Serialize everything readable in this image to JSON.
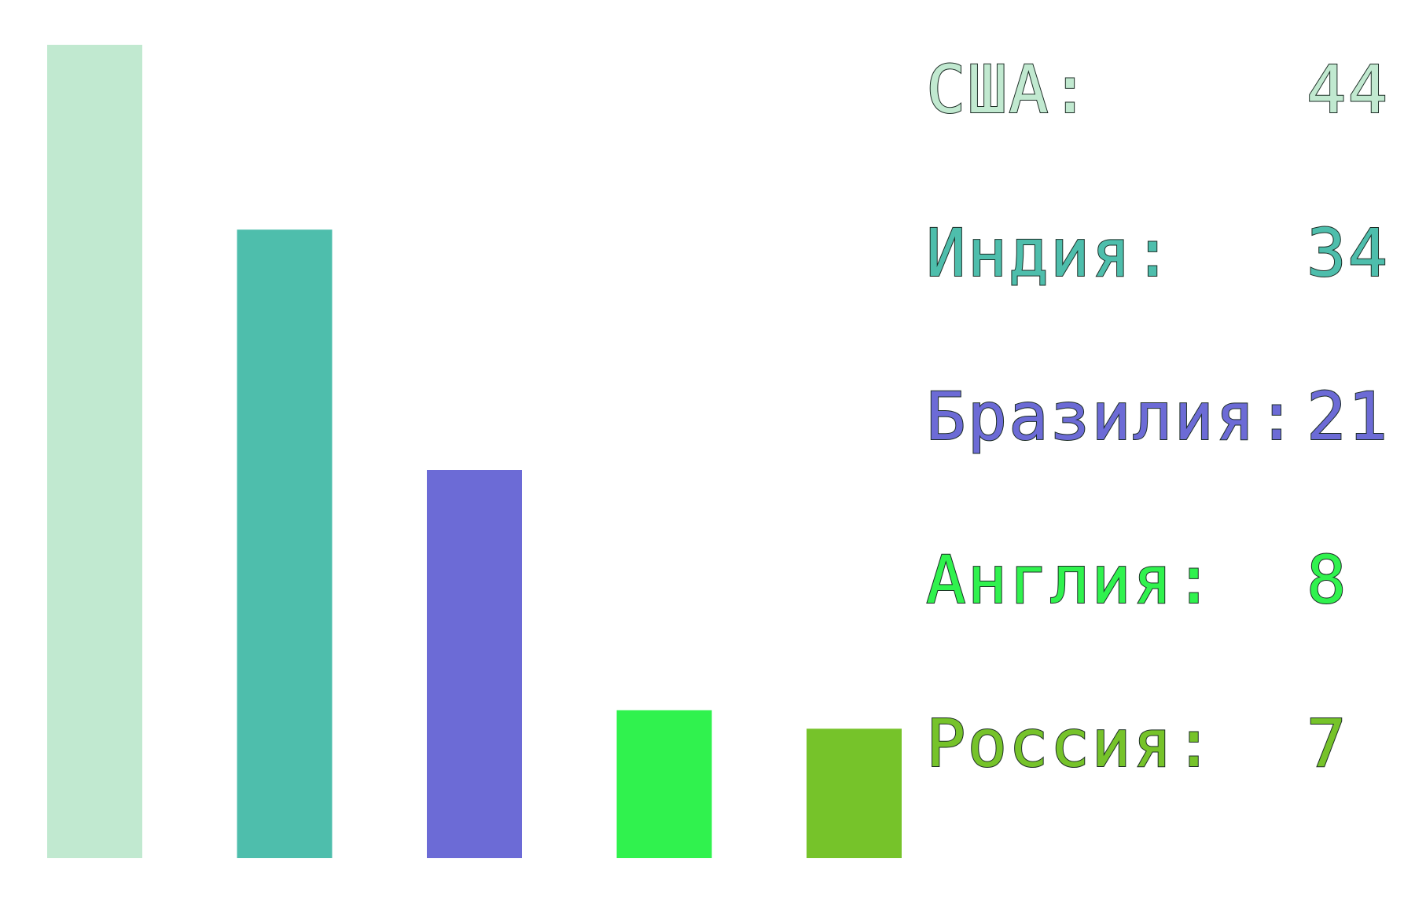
{
  "chart_data": {
    "type": "bar",
    "categories": [
      "США",
      "Индия",
      "Бразилия",
      "Англия",
      "Россия"
    ],
    "values": [
      44,
      34,
      21,
      8,
      7
    ],
    "colors": [
      "#c1e9d0",
      "#4ebeac",
      "#6c6bd6",
      "#30f24e",
      "#76c32a"
    ],
    "value_labels": [
      "44",
      "34",
      "21",
      "8",
      "7"
    ],
    "legend_labels": [
      "США:",
      "Индия:",
      "Бразилия:",
      "Англия:",
      "Россия:"
    ],
    "ylim": [
      0,
      44
    ],
    "grid": false,
    "legend_position": "right"
  }
}
